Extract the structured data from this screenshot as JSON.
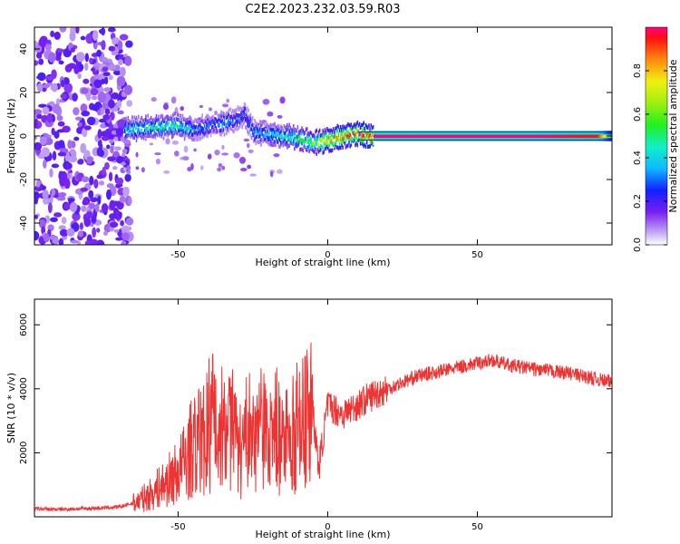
{
  "chart_data": [
    {
      "type": "heatmap",
      "title": "C2E2.2023.232.03.59.R03",
      "xlabel": "Height of straight line (km)",
      "ylabel": "Frequency (Hz)",
      "xlim": [
        -98,
        95
      ],
      "ylim": [
        -50,
        50
      ],
      "xticks": [
        -50,
        0,
        50
      ],
      "yticks": [
        -40,
        -20,
        0,
        20,
        40
      ],
      "colorbar": {
        "label": "Normalized spectral amplitude",
        "range": [
          0.0,
          1.0
        ],
        "ticks": [
          0.0,
          0.2,
          0.4,
          0.6,
          0.8
        ]
      },
      "ridge": {
        "x": [
          -68,
          -60,
          -50,
          -45,
          -40,
          -35,
          -30,
          -28,
          -25,
          -20,
          -15,
          -10,
          -5,
          0,
          5,
          10,
          15,
          30,
          50,
          70,
          90,
          95
        ],
        "freq": [
          3,
          4,
          5,
          3,
          5,
          6,
          8,
          10,
          2,
          1,
          0,
          -1,
          -3,
          -2,
          0,
          1,
          0,
          0,
          0,
          0,
          0,
          0
        ],
        "amplitude": [
          0.45,
          0.45,
          0.5,
          0.35,
          0.3,
          0.35,
          0.3,
          0.3,
          0.35,
          0.4,
          0.45,
          0.55,
          0.65,
          0.8,
          0.9,
          0.95,
          1.0,
          1.0,
          1.0,
          1.0,
          0.95,
          0.5
        ]
      }
    },
    {
      "type": "line",
      "xlabel": "Height of straight line (km)",
      "ylabel": "SNR (10 * v/v)",
      "xlim": [
        -98,
        95
      ],
      "ylim": [
        0,
        6800
      ],
      "xticks": [
        -50,
        0,
        50
      ],
      "yticks": [
        2000,
        4000,
        6000
      ],
      "color": "#ee3333",
      "series": [
        {
          "x": [
            -98,
            -90,
            -80,
            -70,
            -65,
            -60,
            -55,
            -50,
            -45,
            -40,
            -38,
            -35,
            -32,
            -30,
            -25,
            -22,
            -20,
            -15,
            -10,
            -5,
            -3,
            0,
            5,
            10,
            15,
            20,
            25,
            30,
            40,
            50,
            55,
            60,
            70,
            80,
            90,
            95
          ],
          "y": [
            250,
            230,
            260,
            300,
            420,
            650,
            1000,
            1400,
            2200,
            2500,
            3200,
            2400,
            2800,
            2000,
            2300,
            2600,
            2400,
            2200,
            2500,
            3300,
            1500,
            3500,
            3200,
            3500,
            3800,
            4000,
            4200,
            4400,
            4600,
            4800,
            4900,
            4750,
            4600,
            4500,
            4300,
            4200
          ]
        }
      ]
    }
  ]
}
